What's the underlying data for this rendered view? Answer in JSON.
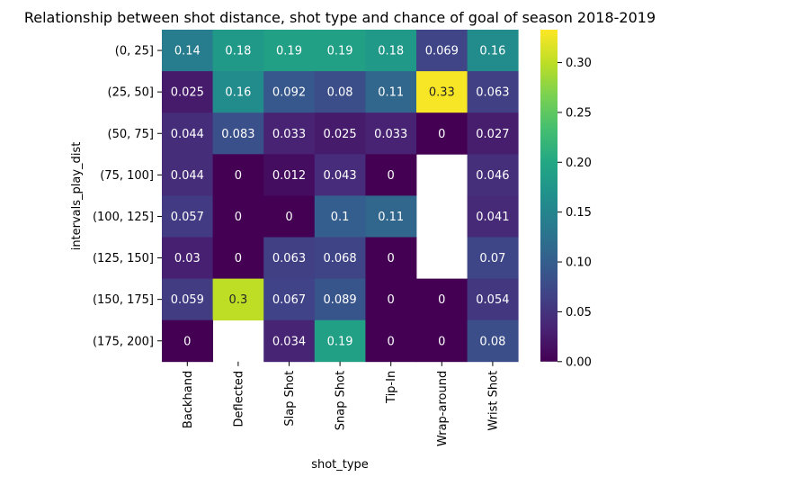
{
  "chart_data": {
    "type": "heatmap",
    "title": "Relationship between shot distance, shot type and chance of goal of season 2018-2019",
    "xlabel": "shot_type",
    "ylabel": "intervals_play_dist",
    "x_categories": [
      "Backhand",
      "Deflected",
      "Slap Shot",
      "Snap Shot",
      "Tip-In",
      "Wrap-around",
      "Wrist Shot"
    ],
    "y_categories": [
      "(0, 25]",
      "(25, 50]",
      "(50, 75]",
      "(75, 100]",
      "(100, 125]",
      "(125, 150]",
      "(150, 175]",
      "(175, 200]"
    ],
    "values": [
      [
        0.14,
        0.18,
        0.19,
        0.19,
        0.18,
        0.069,
        0.16
      ],
      [
        0.025,
        0.16,
        0.092,
        0.08,
        0.11,
        0.33,
        0.063
      ],
      [
        0.044,
        0.083,
        0.033,
        0.025,
        0.033,
        0,
        0.027
      ],
      [
        0.044,
        0,
        0.012,
        0.043,
        0,
        null,
        0.046
      ],
      [
        0.057,
        0,
        0,
        0.1,
        0.11,
        null,
        0.041
      ],
      [
        0.03,
        0,
        0.063,
        0.068,
        0,
        null,
        0.07
      ],
      [
        0.059,
        0.3,
        0.067,
        0.089,
        0,
        0,
        0.054
      ],
      [
        0,
        null,
        0.034,
        0.19,
        0,
        0,
        0.08
      ]
    ],
    "colormap": "viridis",
    "vmin": 0,
    "vmax": 0.333,
    "colorbar_ticks": [
      "0.00",
      "0.05",
      "0.10",
      "0.15",
      "0.20",
      "0.25",
      "0.30"
    ],
    "colorbar_tick_values": [
      0,
      0.05,
      0.1,
      0.15,
      0.2,
      0.25,
      0.3
    ],
    "legend": "colorbar-right",
    "grid": false
  }
}
